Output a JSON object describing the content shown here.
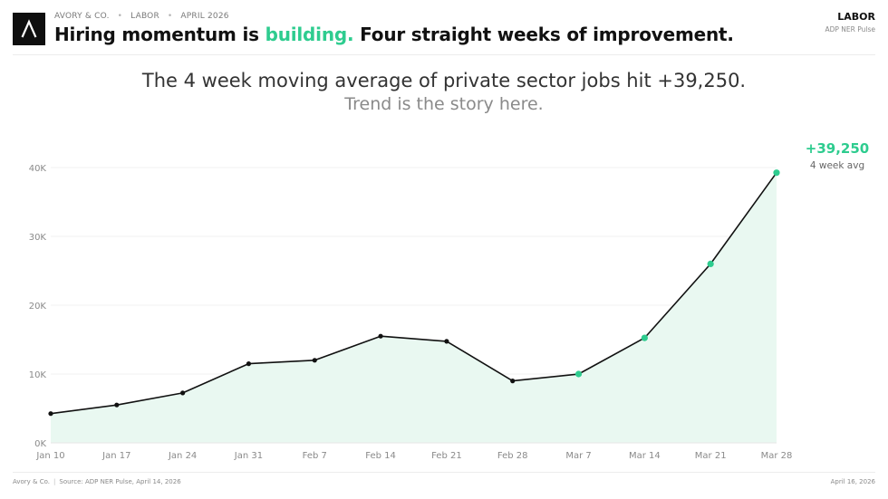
{
  "header": {
    "brand": "AVORY & CO.",
    "section": "LABOR",
    "date": "APRIL 2026",
    "headline_pre": "Hiring momentum is ",
    "headline_accent": "building.",
    "headline_post": " Four straight weeks of improvement.",
    "tag": "LABOR",
    "tag_sub": "ADP NER Pulse"
  },
  "subtitle": {
    "line1": "The 4 week moving average of private sector jobs hit +39,250.",
    "line2": "Trend is the story here."
  },
  "footer": {
    "left_brand": "Avory & Co.",
    "separator": "|",
    "source": "Source: ADP NER Pulse, April 14, 2026",
    "right_date": "April 16, 2026"
  },
  "colors": {
    "accent": "#2ecc8f",
    "line": "#111111",
    "area": "#e9f8f1",
    "grid": "#f0f0f0",
    "axis_text": "#8a8a8a"
  },
  "chart_data": {
    "type": "area",
    "title": "",
    "xlabel": "",
    "ylabel": "",
    "categories": [
      "Jan 10",
      "Jan 17",
      "Jan 24",
      "Jan 31",
      "Feb 7",
      "Feb 14",
      "Feb 21",
      "Feb 28",
      "Mar 7",
      "Mar 14",
      "Mar 21",
      "Mar 28"
    ],
    "series": [
      {
        "name": "4 week avg",
        "values": [
          4250,
          5500,
          7250,
          11500,
          12000,
          15500,
          14750,
          9000,
          10000,
          15250,
          26000,
          39250
        ],
        "highlighted_from_index": 8
      }
    ],
    "ylim": [
      0,
      40000
    ],
    "yticks": [
      0,
      10000,
      20000,
      30000,
      40000
    ],
    "ytick_labels": [
      "0K",
      "10K",
      "20K",
      "30K",
      "40K"
    ],
    "grid": true,
    "annotation": {
      "value": "+39,250",
      "label": "4 week avg"
    }
  }
}
